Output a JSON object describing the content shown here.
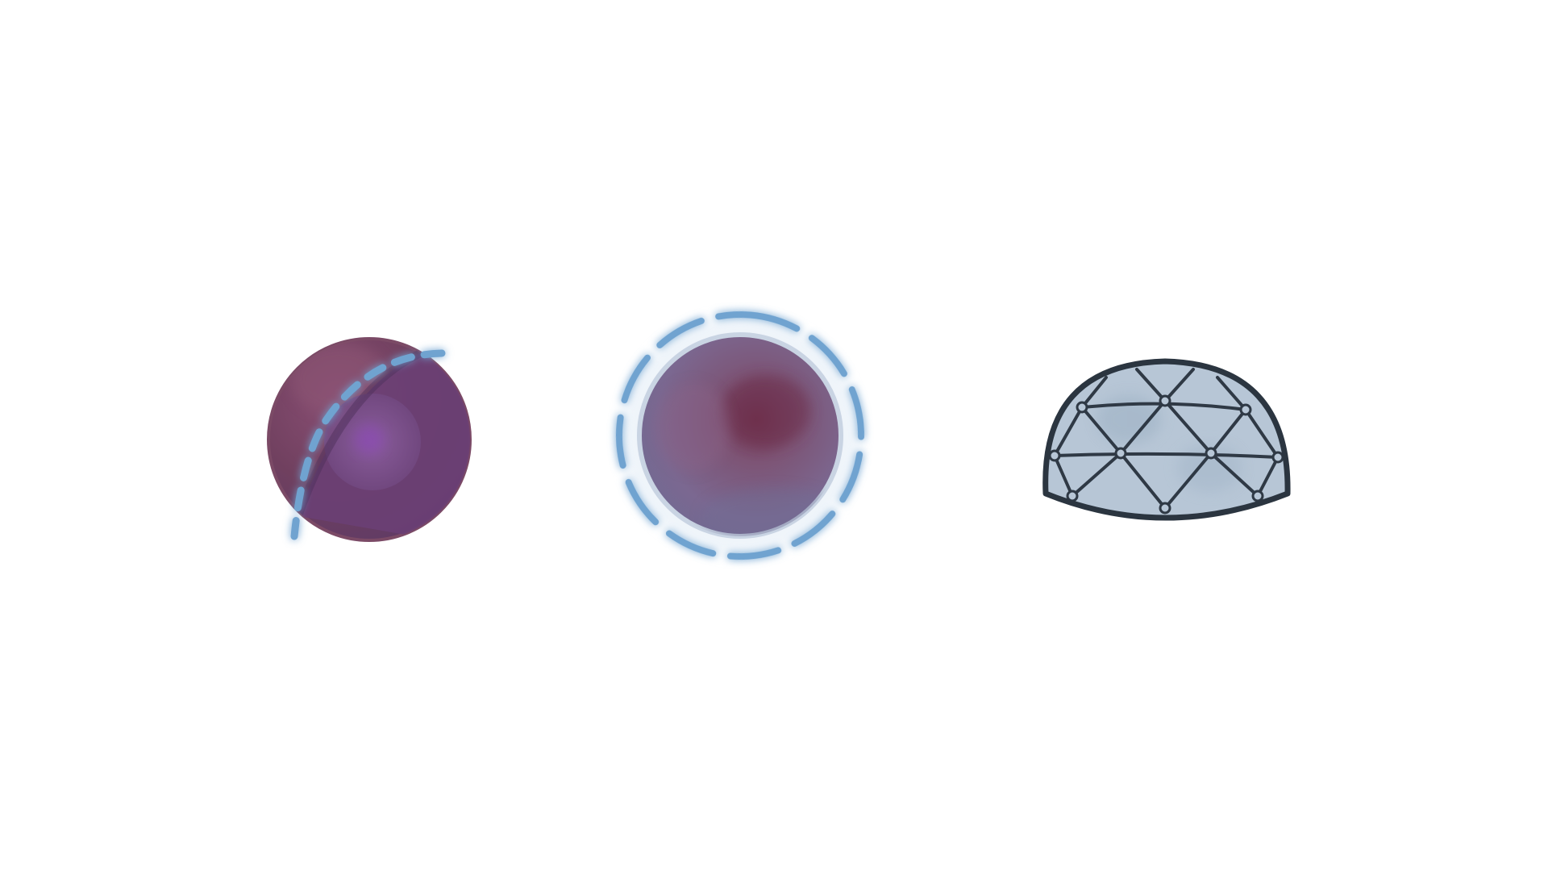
{
  "colors": {
    "background": "#ffffff",
    "sphere_purple": "#6a3f72",
    "sphere_rim": "#7b4a66",
    "sphere_mauve": "#7a6488",
    "dash_blue": "#6fa3d0",
    "dome_fill": "#b7c6d6",
    "dome_stroke": "#2b3540"
  },
  "illustrations": [
    {
      "id": "cut-sphere",
      "icon": "sphere-with-dashed-cut-icon"
    },
    {
      "id": "enclosed-sphere",
      "icon": "sphere-with-dashed-ring-icon"
    },
    {
      "id": "geodesic-dome",
      "icon": "geodesic-dome-icon"
    }
  ]
}
